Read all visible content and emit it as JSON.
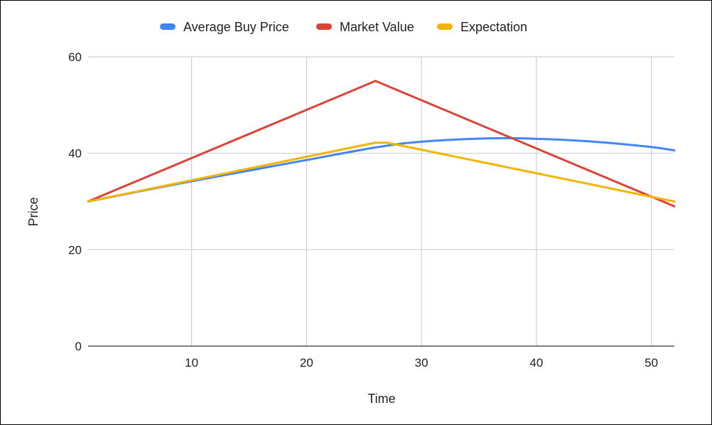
{
  "chart_data": {
    "type": "line",
    "title": "",
    "xlabel": "Time",
    "ylabel": "Price",
    "xlim": [
      1,
      52
    ],
    "ylim": [
      0,
      60
    ],
    "x_ticks": [
      10,
      20,
      30,
      40,
      50
    ],
    "y_ticks": [
      0,
      20,
      40,
      60
    ],
    "grid": true,
    "legend_position": "top",
    "series": [
      {
        "name": "Average Buy Price",
        "color": "#4285F4",
        "points": [
          [
            1,
            30
          ],
          [
            10,
            34.2
          ],
          [
            20,
            38.6
          ],
          [
            26,
            41.2
          ],
          [
            30,
            42.4
          ],
          [
            36,
            43.1
          ],
          [
            40,
            43.0
          ],
          [
            45,
            42.4
          ],
          [
            50,
            41.3
          ],
          [
            52,
            40.6
          ]
        ]
      },
      {
        "name": "Market Value",
        "color": "#DB4437",
        "points": [
          [
            1,
            30
          ],
          [
            26,
            55
          ],
          [
            52,
            29
          ]
        ]
      },
      {
        "name": "Expectation",
        "color": "#F4B400",
        "points": [
          [
            1,
            30
          ],
          [
            26,
            42.2
          ],
          [
            27,
            42.2
          ],
          [
            52,
            30
          ]
        ]
      }
    ]
  }
}
